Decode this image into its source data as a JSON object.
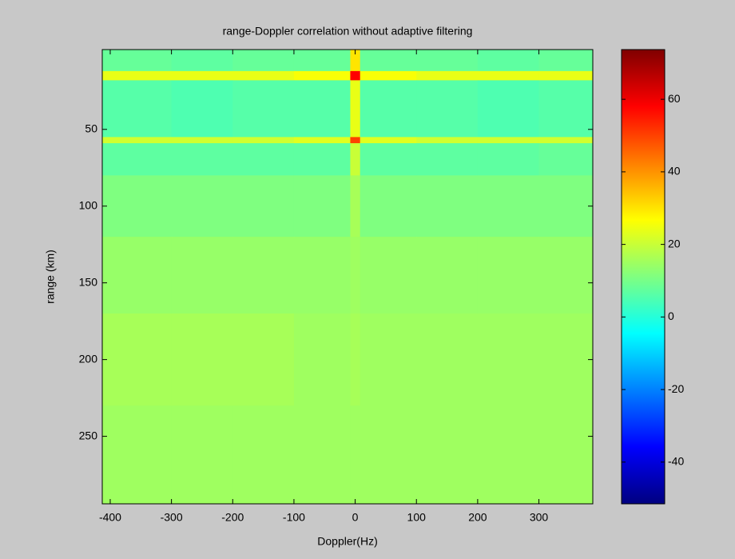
{
  "chart_data": {
    "type": "heatmap",
    "title": "range-Doppler correlation without adaptive filtering",
    "x_label": "Doppler(Hz)",
    "y_label": "range (km)",
    "x_edges": [
      -413,
      -300,
      -200,
      -100,
      -8,
      8,
      100,
      200,
      300,
      388
    ],
    "y_edges": [
      -2,
      12,
      18,
      55,
      59,
      80,
      120,
      170,
      230,
      294
    ],
    "values": [
      [
        8,
        7,
        8,
        8,
        30,
        8,
        8,
        7,
        8
      ],
      [
        24,
        24,
        24,
        26,
        58,
        26,
        24,
        24,
        24
      ],
      [
        6,
        5,
        6,
        6,
        24,
        6,
        6,
        5,
        6
      ],
      [
        21,
        21,
        21,
        23,
        50,
        23,
        21,
        21,
        21
      ],
      [
        7,
        7,
        7,
        7,
        20,
        7,
        7,
        7,
        8
      ],
      [
        11,
        11,
        11,
        11,
        16,
        11,
        11,
        11,
        11
      ],
      [
        14,
        14,
        14,
        14,
        15,
        14,
        14,
        14,
        14
      ],
      [
        16,
        16,
        16,
        15,
        16,
        15,
        15,
        15,
        15
      ],
      [
        15,
        15,
        15,
        15,
        15,
        15,
        15,
        15,
        15
      ]
    ],
    "xlim": [
      -413,
      388
    ],
    "ylim": [
      -2,
      294
    ],
    "y_reversed": true,
    "xticks": [
      -400,
      -300,
      -200,
      -100,
      0,
      100,
      200,
      300
    ],
    "yticks": [
      50,
      100,
      150,
      200,
      250
    ],
    "colormap": "jet",
    "colorbar": {
      "clim": [
        -51.5,
        73.7
      ],
      "ticks": [
        -40,
        -20,
        0,
        20,
        40,
        60
      ]
    }
  }
}
